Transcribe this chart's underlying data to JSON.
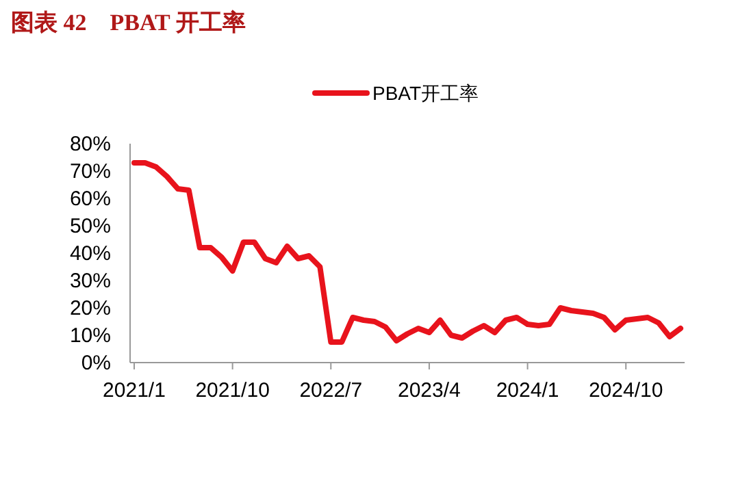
{
  "chart_data": {
    "type": "line",
    "title": "图表 42　PBAT 开工率",
    "categories": [
      "2021/1",
      null,
      null,
      null,
      null,
      null,
      null,
      null,
      null,
      "2021/10",
      null,
      null,
      null,
      null,
      null,
      null,
      null,
      null,
      "2022/7",
      null,
      null,
      null,
      null,
      null,
      null,
      null,
      null,
      "2023/4",
      null,
      null,
      null,
      null,
      null,
      null,
      null,
      null,
      "2024/1",
      null,
      null,
      null,
      null,
      null,
      null,
      null,
      null,
      "2024/10",
      null,
      null,
      null,
      null,
      null
    ],
    "series": [
      {
        "name": "PBAT开工率",
        "color": "#e8131c",
        "values": [
          73,
          73,
          71.5,
          68,
          63.5,
          63,
          42,
          42,
          38.5,
          33.5,
          44,
          44,
          38,
          36.5,
          42.5,
          38,
          39,
          35,
          7.5,
          7.5,
          16.5,
          15.5,
          15,
          13,
          8,
          10.5,
          12.5,
          11,
          15.5,
          10,
          9,
          11.5,
          13.5,
          11,
          15.5,
          16.5,
          14,
          13.5,
          14,
          20,
          19,
          18.5,
          18,
          16.5,
          12,
          15.5,
          16,
          16.5,
          14.5,
          9.5,
          12.5
        ]
      }
    ],
    "ylim": [
      0,
      80
    ],
    "yticks": [
      {
        "value": 0,
        "label": "0%"
      },
      {
        "value": 10,
        "label": "10%"
      },
      {
        "value": 20,
        "label": "20%"
      },
      {
        "value": 30,
        "label": "30%"
      },
      {
        "value": 40,
        "label": "40%"
      },
      {
        "value": 50,
        "label": "50%"
      },
      {
        "value": 60,
        "label": "60%"
      },
      {
        "value": 70,
        "label": "70%"
      },
      {
        "value": 80,
        "label": "80%"
      }
    ],
    "legend": "top",
    "grid": false
  }
}
